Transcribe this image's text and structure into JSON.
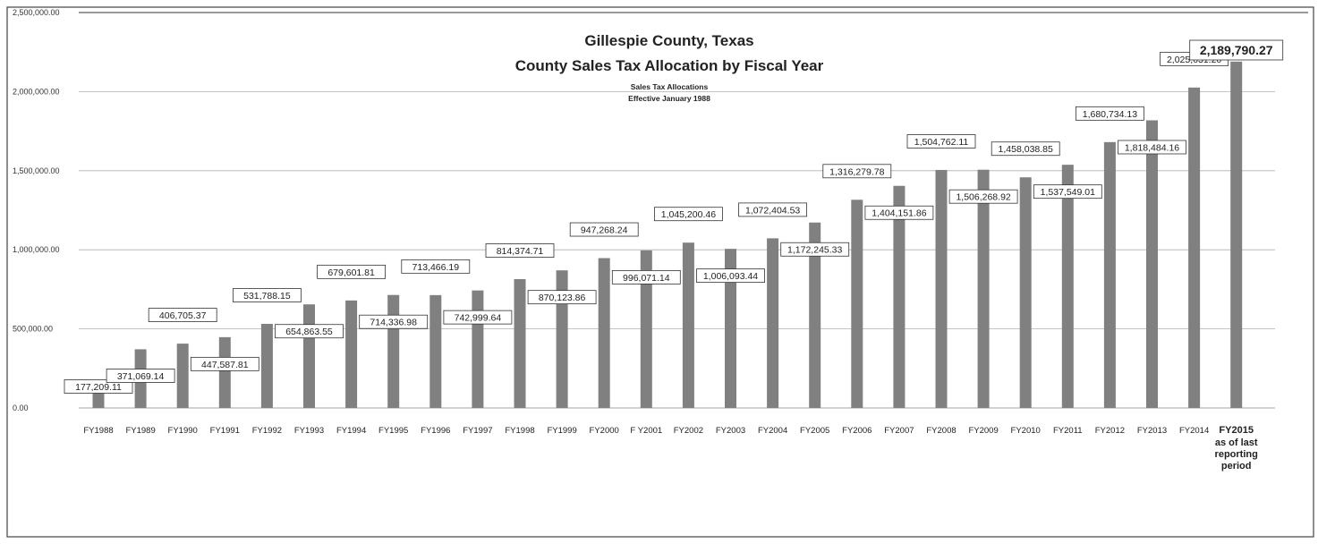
{
  "chart_data": {
    "type": "bar",
    "title": "Gillespie County, Texas",
    "subtitle": "County Sales Tax Allocation by Fiscal Year",
    "annotation_lines": [
      "Sales Tax Allocations",
      "Effective January 1988"
    ],
    "ylim": [
      0,
      2500000
    ],
    "yticks": [
      "0.00",
      "500,000.00",
      "1,000,000.00",
      "1,500,000.00",
      "2,000,000.00",
      "2,500,000.00"
    ],
    "grid": true,
    "bar_color": "#808080",
    "categories": [
      "FY1988",
      "FY1989",
      "FY1990",
      "FY1991",
      "FY1992",
      "FY1993",
      "FY1994",
      "FY1995",
      "FY1996",
      "FY1997",
      "FY1998",
      "FY1999",
      "FY2000",
      "F Y2001",
      "FY2002",
      "FY2003",
      "FY2004",
      "FY2005",
      "FY2006",
      "FY2007",
      "FY2008",
      "FY2009",
      "FY2010",
      "FY2011",
      "FY2012",
      "FY2013",
      "FY2014",
      "FY2015"
    ],
    "last_category_extra_lines": [
      "as of last",
      "reporting",
      "period"
    ],
    "values": [
      177209.11,
      371069.14,
      406705.37,
      447587.81,
      531788.15,
      654863.55,
      679601.81,
      714336.98,
      713466.19,
      742999.64,
      814374.71,
      870123.86,
      947268.24,
      996071.14,
      1045200.46,
      1006093.44,
      1072404.53,
      1172245.33,
      1316279.78,
      1404151.86,
      1504762.11,
      1506268.92,
      1458038.85,
      1537549.01,
      1680734.13,
      1818484.16,
      2025631.2,
      2189790.27
    ],
    "data_labels": [
      "177,209.11",
      "371,069.14",
      "406,705.37",
      "447,587.81",
      "531,788.15",
      "654,863.55",
      "679,601.81",
      "714,336.98",
      "713,466.19",
      "742,999.64",
      "814,374.71",
      "870,123.86",
      "947,268.24",
      "996,071.14",
      "1,045,200.46",
      "1,006,093.44",
      "1,072,404.53",
      "1,172,245.33",
      "1,316,279.78",
      "1,404,151.86",
      "1,504,762.11",
      "1,506,268.92",
      "1,458,038.85",
      "1,537,549.01",
      "1,680,734.13",
      "1,818,484.16",
      "2,025,631.20",
      "2,189,790.27"
    ]
  }
}
